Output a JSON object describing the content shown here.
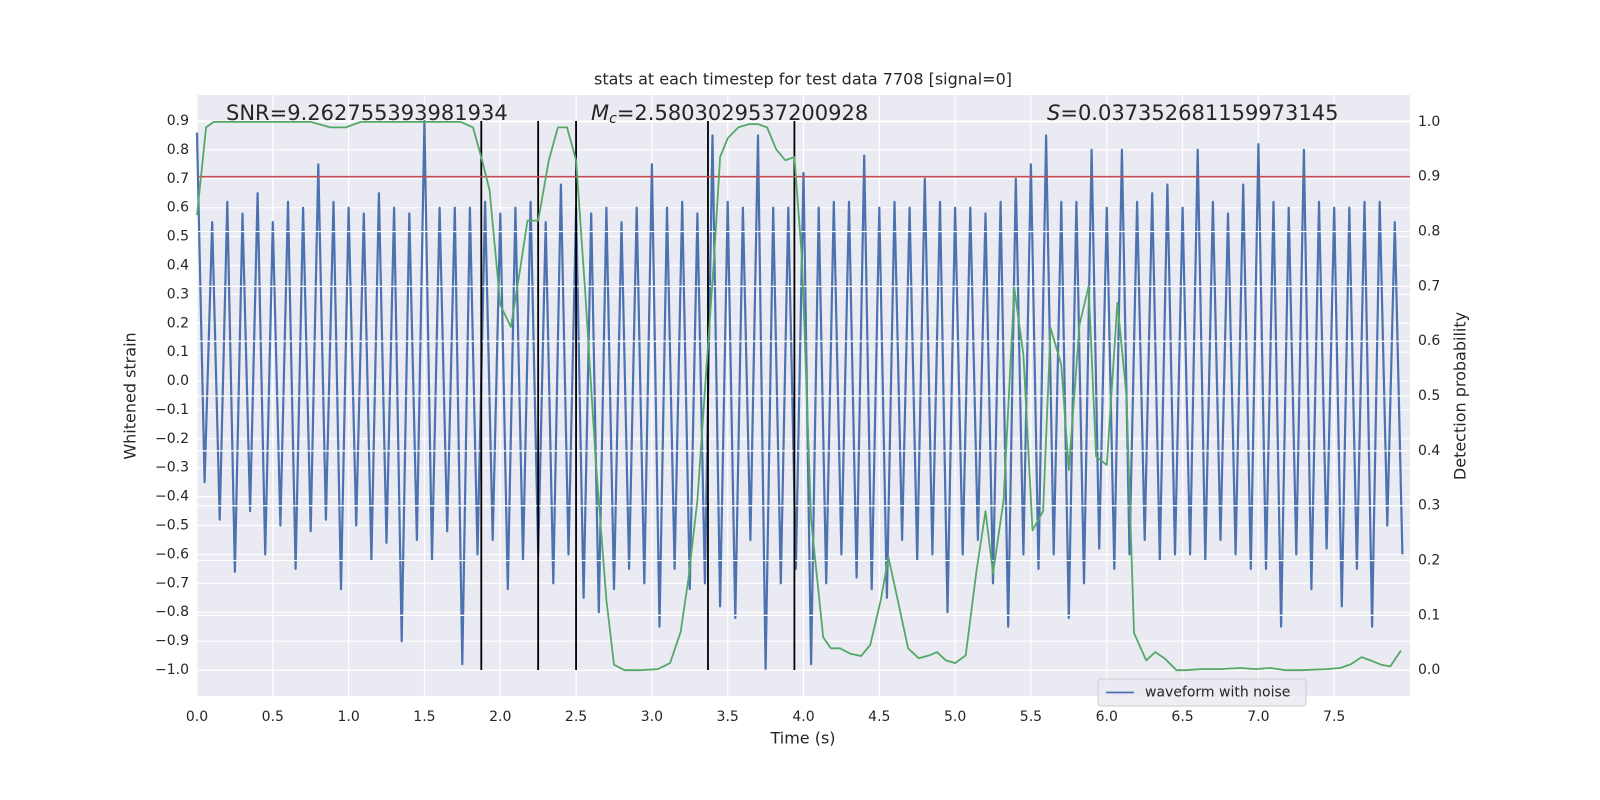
{
  "chart_data": {
    "type": "line",
    "title": "stats at each timestep for test data 7708 [signal=0]",
    "xlabel": "Time (s)",
    "ylabel": "Whitened strain",
    "y2label": "Detection probability",
    "annotations": [
      {
        "text": "SNR=9.262755393981934"
      },
      {
        "symbol": "M",
        "subscript": "c",
        "text": "=2.5803029537200928"
      },
      {
        "symbol": "S",
        "text": "=0.037352681159973145"
      }
    ],
    "xlim": [
      0,
      8.0
    ],
    "ylim": [
      -1.09,
      0.99
    ],
    "y2lim": [
      -0.047,
      1.049
    ],
    "xticks": [
      {
        "value": 0,
        "label": "0.0"
      },
      0.5,
      {
        "value": 1,
        "label": "1.0"
      },
      1.5,
      {
        "value": 2,
        "label": "2.0"
      },
      2.5,
      {
        "value": 3,
        "label": "3.0"
      },
      3.5,
      {
        "value": 4,
        "label": "4.0"
      },
      4.5,
      {
        "value": 5,
        "label": "5.0"
      },
      5.5,
      {
        "value": 6,
        "label": "6.0"
      },
      6.5,
      {
        "value": 7,
        "label": "7.0"
      },
      7.5
    ],
    "yticks": [
      0.9,
      0.8,
      0.7,
      0.6,
      0.5,
      0.4,
      0.3,
      0.2,
      0.1,
      {
        "value": 0,
        "label": "0.0"
      },
      {
        "value": -0.1,
        "label": "−0.1"
      },
      {
        "value": -0.2,
        "label": "−0.2"
      },
      {
        "value": -0.3,
        "label": "−0.3"
      },
      {
        "value": -0.4,
        "label": "−0.4"
      },
      {
        "value": -0.5,
        "label": "−0.5"
      },
      {
        "value": -0.6,
        "label": "−0.6"
      },
      {
        "value": -0.7,
        "label": "−0.7"
      },
      {
        "value": -0.8,
        "label": "−0.8"
      },
      {
        "value": -0.9,
        "label": "−0.9"
      },
      {
        "value": -1,
        "label": "−1.0"
      }
    ],
    "y2ticks": [
      {
        "value": 1,
        "label": "1.0"
      },
      0.9,
      0.8,
      0.7,
      0.6,
      0.5,
      0.4,
      0.3,
      0.2,
      0.1,
      {
        "value": 0,
        "label": "0.0"
      }
    ],
    "grid": true,
    "legend": "lower right",
    "series": [
      {
        "name": "waveform with noise",
        "color": "#4c72b0",
        "x": [
          0,
          0.05,
          0.1,
          0.15,
          0.2,
          0.25,
          0.3,
          0.35,
          0.4,
          0.45,
          0.5,
          0.55,
          0.6,
          0.65,
          0.7,
          0.75,
          0.8,
          0.85,
          0.9,
          0.95,
          1,
          1.05,
          1.1,
          1.15,
          1.2,
          1.25,
          1.3,
          1.35,
          1.4,
          1.45,
          1.5,
          1.55,
          1.6,
          1.65,
          1.7,
          1.75,
          1.8,
          1.85,
          1.9,
          1.95,
          2,
          2.05,
          2.1,
          2.15,
          2.2,
          2.25,
          2.3,
          2.35,
          2.4,
          2.45,
          2.5,
          2.55,
          2.6,
          2.65,
          2.7,
          2.75,
          2.8,
          2.85,
          2.9,
          2.95,
          3,
          3.05,
          3.1,
          3.15,
          3.2,
          3.25,
          3.3,
          3.35,
          3.4,
          3.45,
          3.5,
          3.55,
          3.6,
          3.65,
          3.7,
          3.75,
          3.8,
          3.85,
          3.9,
          3.95,
          4,
          4.05,
          4.1,
          4.15,
          4.2,
          4.25,
          4.3,
          4.35,
          4.4,
          4.45,
          4.5,
          4.55,
          4.6,
          4.65,
          4.7,
          4.75,
          4.8,
          4.85,
          4.9,
          4.95,
          5,
          5.05,
          5.1,
          5.15,
          5.2,
          5.25,
          5.3,
          5.35,
          5.4,
          5.45,
          5.5,
          5.55,
          5.6,
          5.65,
          5.7,
          5.75,
          5.8,
          5.85,
          5.9,
          5.95,
          6,
          6.05,
          6.1,
          6.15,
          6.2,
          6.25,
          6.3,
          6.35,
          6.4,
          6.45,
          6.5,
          6.55,
          6.6,
          6.65,
          6.7,
          6.75,
          6.8,
          6.85,
          6.9,
          6.95,
          7,
          7.05,
          7.1,
          7.15,
          7.2,
          7.25,
          7.3,
          7.35,
          7.4,
          7.45,
          7.5,
          7.55,
          7.6,
          7.65,
          7.7,
          7.75,
          7.8,
          7.85,
          7.9,
          7.95
        ],
        "values": [
          0.86,
          -0.35,
          0.55,
          -0.48,
          0.62,
          -0.66,
          0.58,
          -0.45,
          0.65,
          -0.6,
          0.55,
          -0.5,
          0.62,
          -0.65,
          0.6,
          -0.52,
          0.75,
          -0.48,
          0.62,
          -0.72,
          0.6,
          -0.5,
          0.58,
          -0.62,
          0.65,
          -0.56,
          0.6,
          -0.9,
          0.58,
          -0.55,
          0.9,
          -0.62,
          0.6,
          -0.52,
          0.6,
          -0.98,
          0.6,
          -0.6,
          0.62,
          -0.55,
          0.58,
          -0.72,
          0.6,
          -0.62,
          0.62,
          -0.6,
          0.55,
          -0.7,
          0.68,
          -0.6,
          0.6,
          -0.75,
          0.58,
          -0.8,
          0.6,
          -0.72,
          0.55,
          -0.65,
          0.6,
          -0.7,
          0.75,
          -0.85,
          0.6,
          -0.65,
          0.62,
          -0.72,
          0.58,
          -0.7,
          0.85,
          -0.78,
          0.62,
          -0.82,
          0.6,
          -0.55,
          0.85,
          -1.0,
          0.6,
          -0.7,
          0.6,
          -0.65,
          0.72,
          -0.98,
          0.6,
          -0.7,
          0.62,
          -0.6,
          0.62,
          -0.68,
          0.78,
          -0.72,
          0.6,
          -0.75,
          0.62,
          -0.55,
          0.6,
          -0.62,
          0.7,
          -0.6,
          0.62,
          -0.8,
          0.6,
          -0.6,
          0.6,
          -0.55,
          0.58,
          -0.7,
          0.62,
          -0.85,
          0.7,
          -0.6,
          0.75,
          -0.65,
          0.85,
          -0.6,
          0.62,
          -0.82,
          0.62,
          -0.7,
          0.8,
          -0.58,
          0.6,
          -0.65,
          0.8,
          -0.6,
          0.62,
          -0.55,
          0.65,
          -0.62,
          0.68,
          -0.6,
          0.6,
          -0.6,
          0.8,
          -0.62,
          0.62,
          -0.55,
          0.58,
          -0.6,
          0.68,
          -0.65,
          0.82,
          -0.65,
          0.62,
          -0.85,
          0.6,
          -0.6,
          0.8,
          -0.72,
          0.62,
          -0.58,
          0.6,
          -0.78,
          0.6,
          -0.65,
          0.62,
          -0.85,
          0.62,
          -0.5,
          0.55,
          -0.6
        ]
      },
      {
        "color": "#55a868",
        "axis": "y2",
        "x": [
          0,
          0.06,
          0.11,
          0.75,
          0.88,
          0.98,
          1.08,
          1.74,
          1.82,
          1.88,
          1.93,
          2.0,
          2.07,
          2.13,
          2.18,
          2.25,
          2.32,
          2.38,
          2.44,
          2.5,
          2.56,
          2.63,
          2.7,
          2.75,
          2.82,
          2.92,
          3.04,
          3.12,
          3.19,
          3.24,
          3.3,
          3.35,
          3.41,
          3.45,
          3.5,
          3.57,
          3.64,
          3.7,
          3.76,
          3.82,
          3.88,
          3.94,
          3.99,
          4.05,
          4.13,
          4.18,
          4.24,
          4.31,
          4.38,
          4.44,
          4.51,
          4.56,
          4.62,
          4.69,
          4.76,
          4.83,
          4.88,
          4.94,
          5.0,
          5.07,
          5.14,
          5.2,
          5.25,
          5.32,
          5.39,
          5.45,
          5.51,
          5.58,
          5.63,
          5.7,
          5.75,
          5.82,
          5.88,
          5.93,
          6.0,
          6.07,
          6.13,
          6.18,
          6.26,
          6.32,
          6.38,
          6.46,
          6.52,
          6.62,
          6.75,
          6.88,
          6.98,
          7.08,
          7.18,
          7.28,
          7.45,
          7.54,
          7.61,
          7.68,
          7.74,
          7.81,
          7.87,
          7.94
        ],
        "values": [
          0.83,
          0.99,
          1.0,
          1.0,
          0.99,
          0.99,
          1.0,
          1.0,
          0.99,
          0.93,
          0.875,
          0.666,
          0.626,
          0.73,
          0.82,
          0.82,
          0.93,
          0.99,
          0.99,
          0.93,
          0.69,
          0.38,
          0.128,
          0.01,
          0.0,
          0.0,
          0.002,
          0.013,
          0.07,
          0.165,
          0.31,
          0.51,
          0.75,
          0.936,
          0.97,
          0.99,
          0.996,
          0.996,
          0.99,
          0.95,
          0.93,
          0.936,
          0.75,
          0.274,
          0.06,
          0.04,
          0.04,
          0.03,
          0.026,
          0.046,
          0.128,
          0.206,
          0.13,
          0.04,
          0.022,
          0.027,
          0.033,
          0.018,
          0.013,
          0.027,
          0.18,
          0.29,
          0.177,
          0.31,
          0.697,
          0.575,
          0.255,
          0.29,
          0.624,
          0.557,
          0.365,
          0.63,
          0.7,
          0.39,
          0.374,
          0.67,
          0.5,
          0.068,
          0.018,
          0.033,
          0.022,
          0.0,
          0.0,
          0.002,
          0.002,
          0.004,
          0.002,
          0.004,
          0.0,
          0.0,
          0.002,
          0.004,
          0.011,
          0.024,
          0.018,
          0.01,
          0.007,
          0.036
        ]
      }
    ],
    "hlines": [
      {
        "value": 0.9,
        "axis": "y2",
        "color": "#c44e52"
      }
    ],
    "vlines": {
      "values": [
        1.875,
        2.25,
        2.5,
        3.37,
        3.94
      ],
      "color": "#000000"
    }
  }
}
